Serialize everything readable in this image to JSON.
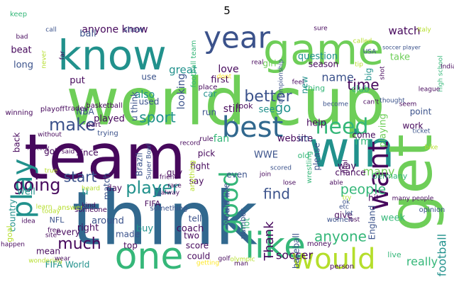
{
  "title": "5",
  "palette": {
    "dark_purple": "#46085c",
    "indigo": "#3b528b",
    "blue": "#31688e",
    "teal": "#21918c",
    "green": "#35b779",
    "light_green": "#6ece58",
    "lime": "#b5de2b",
    "yellow": "#fde725"
  },
  "words": [
    {
      "text": "world cup",
      "color": "#6ece58"
    },
    {
      "text": "think",
      "color": "#31688e"
    },
    {
      "text": "team",
      "color": "#46085c"
    },
    {
      "text": "game",
      "color": "#6ece58"
    },
    {
      "text": "know",
      "color": "#21918c"
    },
    {
      "text": "win",
      "color": "#21918c"
    },
    {
      "text": "get",
      "color": "#6ece58"
    },
    {
      "text": "one",
      "color": "#35b779"
    },
    {
      "text": "like",
      "color": "#35b779"
    },
    {
      "text": "would",
      "color": "#b5de2b"
    },
    {
      "text": "best",
      "color": "#31688e"
    },
    {
      "text": "year",
      "color": "#3b528b"
    },
    {
      "text": "need",
      "color": "#35b779"
    },
    {
      "text": "want",
      "color": "#46085c"
    },
    {
      "text": "play",
      "color": "#21918c"
    },
    {
      "text": "good",
      "color": "#35b779"
    },
    {
      "text": "player",
      "color": "#21918c"
    },
    {
      "text": "going",
      "color": "#46085c"
    },
    {
      "text": "make",
      "color": "#3b528b"
    },
    {
      "text": "sport",
      "color": "#21918c"
    },
    {
      "text": "much",
      "color": "#46085c"
    },
    {
      "text": "time",
      "color": "#46085c"
    },
    {
      "text": "better",
      "color": "#3b528b"
    },
    {
      "text": "find",
      "color": "#3b528b"
    },
    {
      "text": "people",
      "color": "#35b779"
    },
    {
      "text": "start",
      "color": "#3b528b"
    },
    {
      "text": "name",
      "color": "#3b528b"
    },
    {
      "text": "go",
      "color": "#21918c"
    },
    {
      "text": "many",
      "color": "#6ece58"
    },
    {
      "text": "anyone",
      "color": "#35b779"
    },
    {
      "text": "Thank",
      "color": "#46085c"
    },
    {
      "text": "soccer",
      "color": "#46085c"
    },
    {
      "text": "football",
      "color": "#21918c"
    },
    {
      "text": "really",
      "color": "#35b779"
    },
    {
      "text": "watch",
      "color": "#46085c"
    },
    {
      "text": "anyone know",
      "color": "#46085c"
    },
    {
      "text": "great",
      "color": "#21918c"
    },
    {
      "text": "love",
      "color": "#46085c"
    },
    {
      "text": "ball",
      "color": "#3b528b"
    },
    {
      "text": "keep",
      "color": "#35b779"
    },
    {
      "text": "show",
      "color": "#3b528b"
    },
    {
      "text": "first",
      "color": "#46085c"
    },
    {
      "text": "question",
      "color": "#21918c"
    },
    {
      "text": "girl",
      "color": "#6ece58"
    },
    {
      "text": "season",
      "color": "#46085c"
    },
    {
      "text": "see",
      "color": "#21918c"
    },
    {
      "text": "thing",
      "color": "#35b779"
    },
    {
      "text": "take",
      "color": "#6ece58"
    },
    {
      "text": "big",
      "color": "#21918c"
    },
    {
      "text": "beat",
      "color": "#46085c"
    },
    {
      "text": "long",
      "color": "#3b528b"
    },
    {
      "text": "put",
      "color": "#46085c"
    },
    {
      "text": "also",
      "color": "#21918c"
    },
    {
      "text": "use",
      "color": "#3b528b"
    },
    {
      "text": "used",
      "color": "#3b528b"
    },
    {
      "text": "played",
      "color": "#46085c"
    },
    {
      "text": "looking",
      "color": "#3b528b"
    },
    {
      "text": "still",
      "color": "#46085c"
    },
    {
      "text": "new",
      "color": "#21918c"
    },
    {
      "text": "club",
      "color": "#35b779"
    },
    {
      "text": "help",
      "color": "#46085c"
    },
    {
      "text": "I'm",
      "color": "#35b779"
    },
    {
      "text": "point",
      "color": "#3b528b"
    },
    {
      "text": "website",
      "color": "#46085c"
    },
    {
      "text": "come",
      "color": "#46085c"
    },
    {
      "text": "work",
      "color": "#46085c"
    },
    {
      "text": "playing",
      "color": "#6ece58"
    },
    {
      "text": "fan",
      "color": "#35b779"
    },
    {
      "text": "WWE",
      "color": "#3b528b"
    },
    {
      "text": "pick",
      "color": "#46085c"
    },
    {
      "text": "fight",
      "color": "#46085c"
    },
    {
      "text": "chance",
      "color": "#46085c"
    },
    {
      "text": "way",
      "color": "#46085c"
    },
    {
      "text": "even",
      "color": "#3b528b"
    },
    {
      "text": "Germany",
      "color": "#35b779"
    },
    {
      "text": "hit",
      "color": "#46085c"
    },
    {
      "text": "day",
      "color": "#46085c"
    },
    {
      "text": "match",
      "color": "#3b528b"
    },
    {
      "text": "guy",
      "color": "#46085c"
    },
    {
      "text": "say",
      "color": "#46085c"
    },
    {
      "text": "Brazil",
      "color": "#3b528b"
    },
    {
      "text": "well",
      "color": "#21918c"
    },
    {
      "text": "got",
      "color": "#46085c"
    },
    {
      "text": "since",
      "color": "#46085c"
    },
    {
      "text": "country",
      "color": "#21918c"
    },
    {
      "text": "right",
      "color": "#46085c"
    },
    {
      "text": "around",
      "color": "#3b528b"
    },
    {
      "text": "tell",
      "color": "#3b528b"
    },
    {
      "text": "would like",
      "color": "#3b528b"
    },
    {
      "text": "week",
      "color": "#35b779"
    },
    {
      "text": "give",
      "color": "#46085c"
    },
    {
      "text": "England",
      "color": "#3b528b"
    },
    {
      "text": "baseball",
      "color": "#3b528b"
    },
    {
      "text": "made",
      "color": "#3b528b"
    },
    {
      "text": "buy",
      "color": "#21918c"
    },
    {
      "text": "coach",
      "color": "#46085c"
    },
    {
      "text": "top",
      "color": "#46085c"
    },
    {
      "text": "score",
      "color": "#46085c"
    },
    {
      "text": "could",
      "color": "#46085c"
    },
    {
      "text": "two",
      "color": "#46085c"
    },
    {
      "text": "mean",
      "color": "#46085c"
    },
    {
      "text": "back",
      "color": "#46085c"
    },
    {
      "text": "every",
      "color": "#46085c"
    },
    {
      "text": "live",
      "color": "#35b779"
    },
    {
      "text": "u",
      "color": "#21918c"
    },
    {
      "text": "u think",
      "color": "#3b528b"
    },
    {
      "text": "NBA",
      "color": "#3b528b"
    },
    {
      "text": "NFL",
      "color": "#3b528b"
    },
    {
      "text": "FIFA World",
      "color": "#21918c"
    },
    {
      "text": "FIFA",
      "color": "#46085c"
    },
    {
      "text": "goal",
      "color": "#b5de2b"
    },
    {
      "text": "run",
      "color": "#3b528b"
    },
    {
      "text": "lot",
      "color": "#35b779"
    },
    {
      "text": "number",
      "color": "#3b528b"
    },
    {
      "text": "im",
      "color": "#3b528b"
    },
    {
      "text": "car",
      "color": "#21918c"
    },
    {
      "text": "look",
      "color": "#46085c"
    },
    {
      "text": "place",
      "color": "#46085c"
    },
    {
      "text": "please",
      "color": "#3b528b"
    },
    {
      "text": "old",
      "color": "#35b779"
    },
    {
      "text": "football team",
      "color": "#35b779"
    },
    {
      "text": "high school",
      "color": "#35b779"
    },
    {
      "text": "soccer player",
      "color": "#3b528b"
    },
    {
      "text": "championship",
      "color": "#3b528b"
    },
    {
      "text": "wrestling",
      "color": "#35b779"
    },
    {
      "text": "basketball",
      "color": "#46085c"
    },
    {
      "text": "history",
      "color": "#46085c"
    },
    {
      "text": "Super Bowl",
      "color": "#3b528b"
    },
    {
      "text": "something",
      "color": "#3b528b"
    },
    {
      "text": "anything",
      "color": "#b5de2b"
    },
    {
      "text": "someone",
      "color": "#46085c"
    },
    {
      "text": "answer",
      "color": "#b5de2b"
    },
    {
      "text": "wondering",
      "color": "#b5de2b"
    },
    {
      "text": "opinion",
      "color": "#3b528b"
    },
    {
      "text": "person",
      "color": "#46085c"
    },
    {
      "text": "money",
      "color": "#46085c"
    },
    {
      "text": "women",
      "color": "#3b528b"
    },
    {
      "text": "trying",
      "color": "#3b528b"
    },
    {
      "text": "winning",
      "color": "#46085c"
    },
    {
      "text": "playoff",
      "color": "#46085c"
    },
    {
      "text": "tradev",
      "color": "#46085c"
    },
    {
      "text": "part",
      "color": "#46085c"
    },
    {
      "text": "record",
      "color": "#46085c"
    },
    {
      "text": "rule",
      "color": "#46085c"
    },
    {
      "text": "scored",
      "color": "#3b528b"
    },
    {
      "text": "final",
      "color": "#46085c"
    },
    {
      "text": "become",
      "color": "#3b528b"
    },
    {
      "text": "can't",
      "color": "#46085c"
    },
    {
      "text": "thought",
      "color": "#3b528b"
    },
    {
      "text": "seem",
      "color": "#46085c"
    },
    {
      "text": "ticket",
      "color": "#3b528b"
    },
    {
      "text": "league",
      "color": "#46085c"
    },
    {
      "text": "India",
      "color": "#46085c"
    },
    {
      "text": "Italy",
      "color": "#b5de2b"
    },
    {
      "text": "called",
      "color": "#b5de2b"
    },
    {
      "text": "USA",
      "color": "#3b528b"
    },
    {
      "text": "shot",
      "color": "#46085c"
    },
    {
      "text": "lost",
      "color": "#46085c"
    },
    {
      "text": "let",
      "color": "#3b528b"
    },
    {
      "text": "ok",
      "color": "#3b528b"
    },
    {
      "text": "etc",
      "color": "#3b528b"
    },
    {
      "text": "try",
      "color": "#b5de2b"
    },
    {
      "text": "lose",
      "color": "#46085c"
    },
    {
      "text": "join",
      "color": "#46085c"
    },
    {
      "text": "able",
      "color": "#46085c"
    },
    {
      "text": "friend",
      "color": "#46085c"
    },
    {
      "text": "alway",
      "color": "#46085c"
    },
    {
      "text": "race",
      "color": "#46085c"
    },
    {
      "text": "heard",
      "color": "#b5de2b"
    },
    {
      "text": "kind",
      "color": "#46085c"
    },
    {
      "text": "learn",
      "color": "#b5de2b"
    },
    {
      "text": "true",
      "color": "#b5de2b"
    },
    {
      "text": "today",
      "color": "#b5de2b"
    },
    {
      "text": "free",
      "color": "#46085c"
    },
    {
      "text": "idea",
      "color": "#46085c"
    },
    {
      "text": "happen",
      "color": "#46085c"
    },
    {
      "text": "site",
      "color": "#46085c"
    },
    {
      "text": "wear",
      "color": "#46085c"
    },
    {
      "text": "golf",
      "color": "#46085c"
    },
    {
      "text": "olympic",
      "color": "#b5de2b"
    },
    {
      "text": "man",
      "color": "#46085c"
    },
    {
      "text": "getting",
      "color": "#fde725"
    },
    {
      "text": "bad",
      "color": "#46085c"
    },
    {
      "text": "call",
      "color": "#3b528b"
    },
    {
      "text": "far",
      "color": "#46085c"
    },
    {
      "text": "never",
      "color": "#b5de2b"
    },
    {
      "text": "said",
      "color": "#46085c"
    },
    {
      "text": "without",
      "color": "#46085c"
    },
    {
      "text": "real",
      "color": "#46085c"
    },
    {
      "text": "feel",
      "color": "#46085c"
    },
    {
      "text": "dont",
      "color": "#fde725"
    },
    {
      "text": "sure",
      "color": "#46085c"
    },
    {
      "text": "tip",
      "color": "#b5de2b"
    },
    {
      "text": "bike",
      "color": "#b5de2b"
    },
    {
      "text": "many people",
      "color": "#46085c"
    }
  ]
}
